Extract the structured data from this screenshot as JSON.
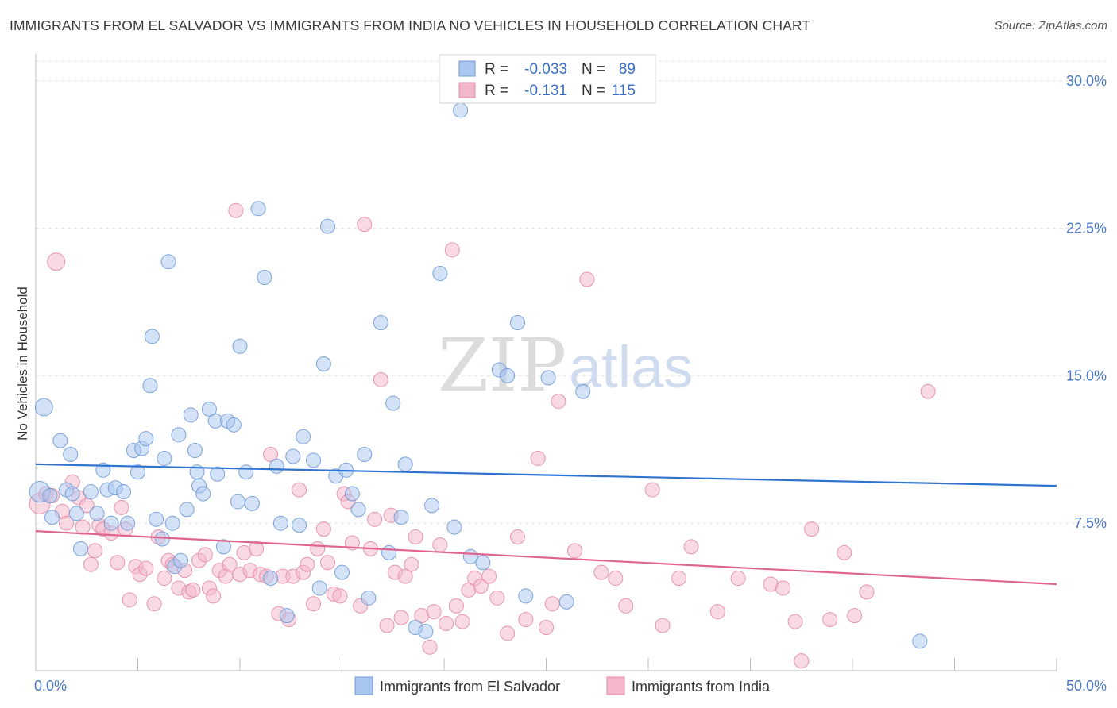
{
  "header": {
    "title": "IMMIGRANTS FROM EL SALVADOR VS IMMIGRANTS FROM INDIA NO VEHICLES IN HOUSEHOLD CORRELATION CHART",
    "source": "Source: ZipAtlas.com"
  },
  "watermark": {
    "zip": "ZIP",
    "atlas": "atlas"
  },
  "legend_top": {
    "r_label": "R =",
    "n_label": "N =",
    "rows": [
      {
        "r": "-0.033",
        "n": "89",
        "color": "#a9c6ef"
      },
      {
        "r": "-0.131",
        "n": "115",
        "color": "#f4b6c9"
      }
    ]
  },
  "colors": {
    "blue_fill": "#a9c6ef",
    "blue_line": "#2f73d0",
    "pink_fill": "#f4b6c9",
    "pink_line": "#e0648e",
    "tick": "#4a78c2"
  },
  "chart_data": {
    "type": "scatter",
    "title": "IMMIGRANTS FROM EL SALVADOR VS IMMIGRANTS FROM INDIA NO VEHICLES IN HOUSEHOLD CORRELATION CHART",
    "xlabel": "",
    "ylabel": "No Vehicles in Household",
    "xlim": [
      0,
      50
    ],
    "ylim": [
      0,
      31
    ],
    "x_tick_labels": [
      "0.0%",
      "50.0%"
    ],
    "y_ticks": [
      7.5,
      15.0,
      22.5,
      30.0
    ],
    "y_tick_labels": [
      "7.5%",
      "15.0%",
      "22.5%",
      "30.0%"
    ],
    "grid": "horizontal dashed",
    "legend_position": "bottom-center",
    "series": [
      {
        "name": "Immigrants from El Salvador",
        "color": "#a9c6ef",
        "r": -0.033,
        "n": 89,
        "trend": [
          [
            0,
            10.5
          ],
          [
            50,
            9.4
          ]
        ],
        "points": [
          [
            0.2,
            9.1
          ],
          [
            0.4,
            13.4
          ],
          [
            0.7,
            8.9
          ],
          [
            0.8,
            7.8
          ],
          [
            1.2,
            11.7
          ],
          [
            1.5,
            9.2
          ],
          [
            1.7,
            11.0
          ],
          [
            1.8,
            9.0
          ],
          [
            2.0,
            8.0
          ],
          [
            2.2,
            6.2
          ],
          [
            2.7,
            9.1
          ],
          [
            3.0,
            8.0
          ],
          [
            3.3,
            10.2
          ],
          [
            3.5,
            9.2
          ],
          [
            3.7,
            7.5
          ],
          [
            3.9,
            9.3
          ],
          [
            4.3,
            9.1
          ],
          [
            4.5,
            7.5
          ],
          [
            4.8,
            11.2
          ],
          [
            5.0,
            10.1
          ],
          [
            5.2,
            11.3
          ],
          [
            5.4,
            11.8
          ],
          [
            5.6,
            14.5
          ],
          [
            5.7,
            17.0
          ],
          [
            5.9,
            7.7
          ],
          [
            6.2,
            6.7
          ],
          [
            6.3,
            10.8
          ],
          [
            6.5,
            20.8
          ],
          [
            6.7,
            7.5
          ],
          [
            6.8,
            5.3
          ],
          [
            7.0,
            12.0
          ],
          [
            7.1,
            5.6
          ],
          [
            7.4,
            8.2
          ],
          [
            7.6,
            13.0
          ],
          [
            7.8,
            11.2
          ],
          [
            7.9,
            10.1
          ],
          [
            8.0,
            9.4
          ],
          [
            8.2,
            9.0
          ],
          [
            8.5,
            13.3
          ],
          [
            8.8,
            12.7
          ],
          [
            8.9,
            10.0
          ],
          [
            9.2,
            6.3
          ],
          [
            9.4,
            12.7
          ],
          [
            9.7,
            12.5
          ],
          [
            9.9,
            8.6
          ],
          [
            10.0,
            16.5
          ],
          [
            10.3,
            10.1
          ],
          [
            10.6,
            8.5
          ],
          [
            10.9,
            23.5
          ],
          [
            11.2,
            20.0
          ],
          [
            11.5,
            4.7
          ],
          [
            11.8,
            10.4
          ],
          [
            12.0,
            7.5
          ],
          [
            12.3,
            2.8
          ],
          [
            12.6,
            10.9
          ],
          [
            12.9,
            7.4
          ],
          [
            13.1,
            11.9
          ],
          [
            13.6,
            10.7
          ],
          [
            13.9,
            4.2
          ],
          [
            14.1,
            15.6
          ],
          [
            14.3,
            22.6
          ],
          [
            14.7,
            9.9
          ],
          [
            15.0,
            5.0
          ],
          [
            15.2,
            10.2
          ],
          [
            15.5,
            9.0
          ],
          [
            15.8,
            8.2
          ],
          [
            16.1,
            11.0
          ],
          [
            16.3,
            3.7
          ],
          [
            16.9,
            17.7
          ],
          [
            17.3,
            6.0
          ],
          [
            17.5,
            13.6
          ],
          [
            17.9,
            7.8
          ],
          [
            18.1,
            10.5
          ],
          [
            18.6,
            2.2
          ],
          [
            19.1,
            2.0
          ],
          [
            19.4,
            8.4
          ],
          [
            19.8,
            20.2
          ],
          [
            20.5,
            7.3
          ],
          [
            20.8,
            28.5
          ],
          [
            21.3,
            5.8
          ],
          [
            21.9,
            5.5
          ],
          [
            22.7,
            15.3
          ],
          [
            23.1,
            15.0
          ],
          [
            23.6,
            17.7
          ],
          [
            24.0,
            3.8
          ],
          [
            25.1,
            14.9
          ],
          [
            26.0,
            3.5
          ],
          [
            26.8,
            14.2
          ],
          [
            43.3,
            1.5
          ]
        ]
      },
      {
        "name": "Immigrants from India",
        "color": "#f4b6c9",
        "r": -0.131,
        "n": 115,
        "trend": [
          [
            0,
            7.1
          ],
          [
            50,
            4.4
          ]
        ],
        "points": [
          [
            0.2,
            8.5
          ],
          [
            0.5,
            9.0
          ],
          [
            0.8,
            8.9
          ],
          [
            1.0,
            20.8
          ],
          [
            1.3,
            8.1
          ],
          [
            1.5,
            7.5
          ],
          [
            1.8,
            9.6
          ],
          [
            2.1,
            8.8
          ],
          [
            2.3,
            7.3
          ],
          [
            2.5,
            8.4
          ],
          [
            2.7,
            5.4
          ],
          [
            2.9,
            6.1
          ],
          [
            3.1,
            7.4
          ],
          [
            3.3,
            7.2
          ],
          [
            3.7,
            7.0
          ],
          [
            4.0,
            5.5
          ],
          [
            4.2,
            8.3
          ],
          [
            4.4,
            7.2
          ],
          [
            4.6,
            3.6
          ],
          [
            4.9,
            5.3
          ],
          [
            5.1,
            4.9
          ],
          [
            5.4,
            5.2
          ],
          [
            5.8,
            3.4
          ],
          [
            6.0,
            6.8
          ],
          [
            6.3,
            4.7
          ],
          [
            6.5,
            5.6
          ],
          [
            6.7,
            5.4
          ],
          [
            7.0,
            4.2
          ],
          [
            7.3,
            5.1
          ],
          [
            7.5,
            4.0
          ],
          [
            7.7,
            4.1
          ],
          [
            8.0,
            5.6
          ],
          [
            8.3,
            5.9
          ],
          [
            8.5,
            4.2
          ],
          [
            8.7,
            3.8
          ],
          [
            9.0,
            5.1
          ],
          [
            9.3,
            4.8
          ],
          [
            9.5,
            5.4
          ],
          [
            9.8,
            23.4
          ],
          [
            10.0,
            4.9
          ],
          [
            10.2,
            6.0
          ],
          [
            10.5,
            5.1
          ],
          [
            10.8,
            6.2
          ],
          [
            11.0,
            4.9
          ],
          [
            11.3,
            4.8
          ],
          [
            11.5,
            11.0
          ],
          [
            11.9,
            2.9
          ],
          [
            12.1,
            4.8
          ],
          [
            12.4,
            2.6
          ],
          [
            12.6,
            4.8
          ],
          [
            12.9,
            9.2
          ],
          [
            13.1,
            5.0
          ],
          [
            13.3,
            5.4
          ],
          [
            13.6,
            3.4
          ],
          [
            13.8,
            6.2
          ],
          [
            14.1,
            7.2
          ],
          [
            14.3,
            5.5
          ],
          [
            14.6,
            3.9
          ],
          [
            14.9,
            3.8
          ],
          [
            15.1,
            9.0
          ],
          [
            15.3,
            8.6
          ],
          [
            15.5,
            6.5
          ],
          [
            15.9,
            3.3
          ],
          [
            16.1,
            22.7
          ],
          [
            16.4,
            6.2
          ],
          [
            16.6,
            7.7
          ],
          [
            16.9,
            14.8
          ],
          [
            17.2,
            2.3
          ],
          [
            17.4,
            7.9
          ],
          [
            17.6,
            5.0
          ],
          [
            17.9,
            2.7
          ],
          [
            18.1,
            4.8
          ],
          [
            18.4,
            5.4
          ],
          [
            18.6,
            6.8
          ],
          [
            18.9,
            2.8
          ],
          [
            19.3,
            1.2
          ],
          [
            19.5,
            3.0
          ],
          [
            19.8,
            6.4
          ],
          [
            20.1,
            2.4
          ],
          [
            20.4,
            21.4
          ],
          [
            20.6,
            3.3
          ],
          [
            20.9,
            2.5
          ],
          [
            21.2,
            4.1
          ],
          [
            21.5,
            4.7
          ],
          [
            21.8,
            4.3
          ],
          [
            22.2,
            4.8
          ],
          [
            22.6,
            3.7
          ],
          [
            23.1,
            1.9
          ],
          [
            23.6,
            6.8
          ],
          [
            24.0,
            2.6
          ],
          [
            24.6,
            10.8
          ],
          [
            25.0,
            2.2
          ],
          [
            25.3,
            3.4
          ],
          [
            25.6,
            13.7
          ],
          [
            26.4,
            6.1
          ],
          [
            27.0,
            19.9
          ],
          [
            27.7,
            5.0
          ],
          [
            28.4,
            4.7
          ],
          [
            28.9,
            3.3
          ],
          [
            30.2,
            9.2
          ],
          [
            30.7,
            2.3
          ],
          [
            31.5,
            4.7
          ],
          [
            32.1,
            6.3
          ],
          [
            33.4,
            3.0
          ],
          [
            34.4,
            4.7
          ],
          [
            36.0,
            4.4
          ],
          [
            36.6,
            4.2
          ],
          [
            37.2,
            2.5
          ],
          [
            37.5,
            0.5
          ],
          [
            38.0,
            7.2
          ],
          [
            38.9,
            2.6
          ],
          [
            39.6,
            6.0
          ],
          [
            40.1,
            2.8
          ],
          [
            40.7,
            4.0
          ],
          [
            43.7,
            14.2
          ]
        ]
      }
    ]
  }
}
